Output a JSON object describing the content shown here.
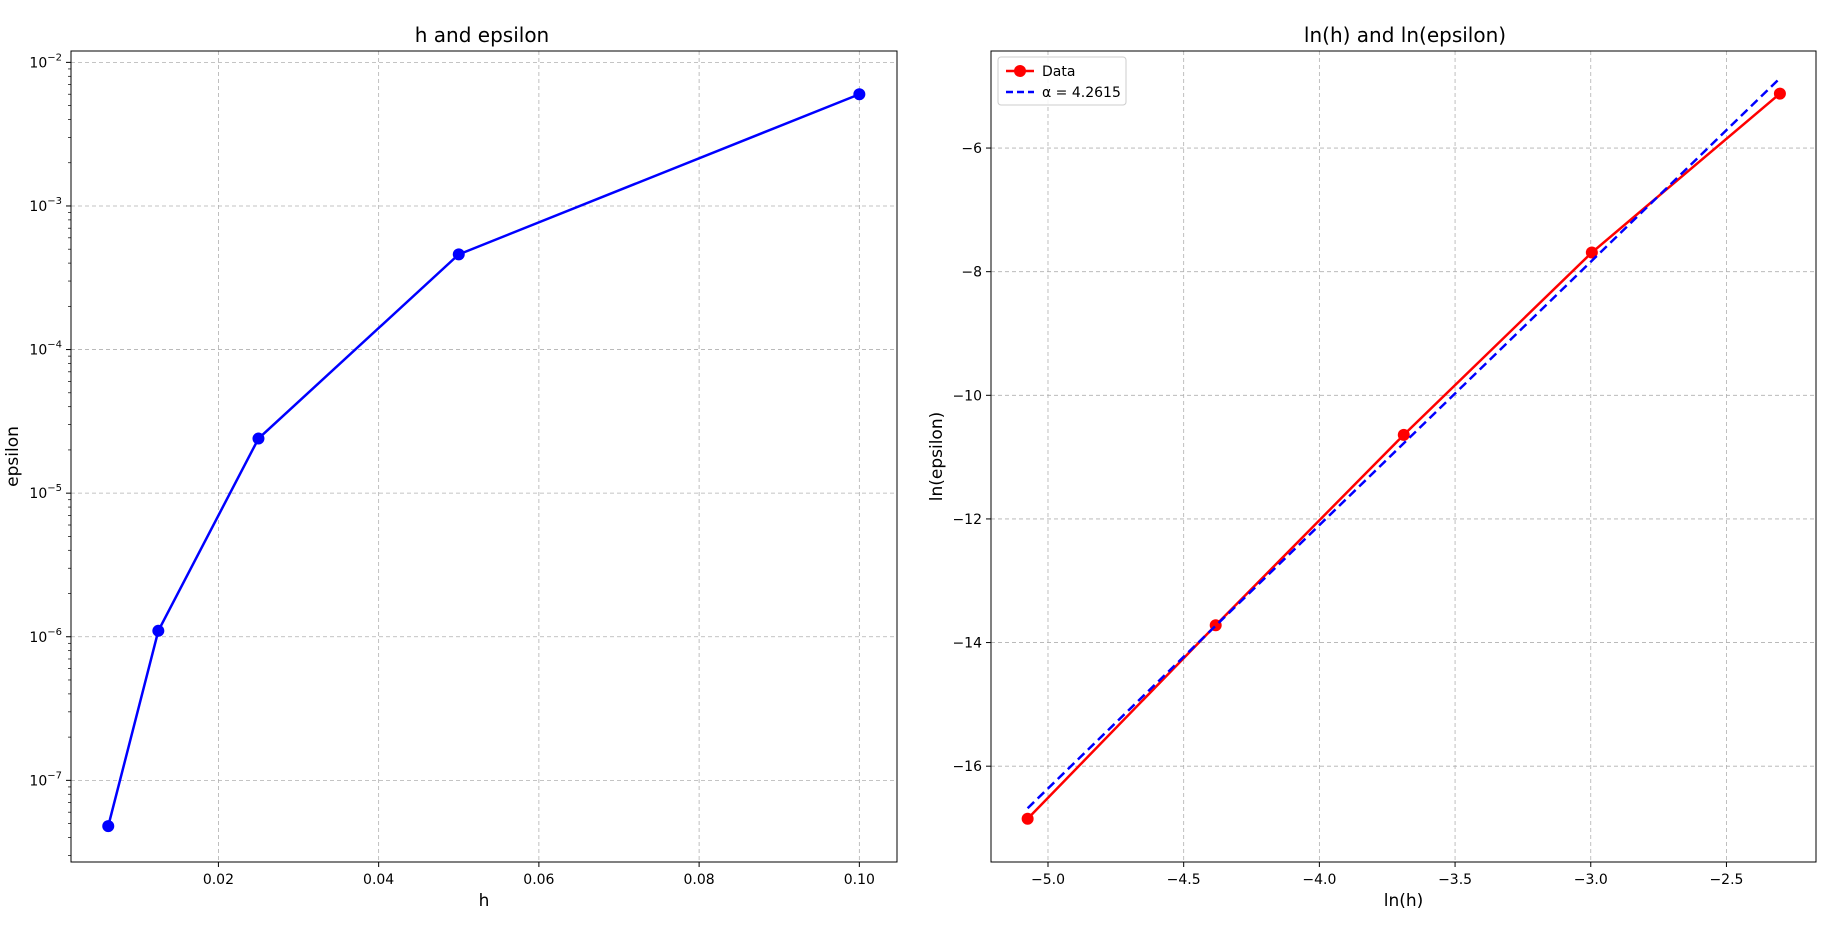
{
  "chart_data": [
    {
      "type": "line",
      "title": "h and epsilon",
      "xlabel": "h",
      "ylabel": "epsilon",
      "yscale": "log",
      "grid": true,
      "xlim": [
        0.0016,
        0.1047
      ],
      "ylim": [
        2.7e-08,
        0.012
      ],
      "x_ticks": [
        0.02,
        0.04,
        0.06,
        0.08,
        0.1
      ],
      "x_tick_labels": [
        "0.02",
        "0.04",
        "0.06",
        "0.08",
        "0.10"
      ],
      "y_ticks": [
        1e-07,
        1e-06,
        1e-05,
        0.0001,
        0.001,
        0.01
      ],
      "y_tick_labels": [
        {
          "base": "10",
          "exp": "−7"
        },
        {
          "base": "10",
          "exp": "−6"
        },
        {
          "base": "10",
          "exp": "−5"
        },
        {
          "base": "10",
          "exp": "−4"
        },
        {
          "base": "10",
          "exp": "−3"
        },
        {
          "base": "10",
          "exp": "−2"
        }
      ],
      "series": [
        {
          "color": "#0000ff",
          "marker": "circle",
          "x": [
            0.00625,
            0.0125,
            0.025,
            0.05,
            0.1
          ],
          "y": [
            4.8e-08,
            1.1e-06,
            2.4e-05,
            0.00046,
            0.006
          ]
        }
      ]
    },
    {
      "type": "line",
      "title": "ln(h) and ln(epsilon)",
      "xlabel": "ln(h)",
      "ylabel": "ln(epsilon)",
      "grid": true,
      "legend_position": "top-left",
      "xlim": [
        -5.21,
        -2.17
      ],
      "ylim": [
        -17.55,
        -4.43
      ],
      "x_ticks": [
        -5.0,
        -4.5,
        -4.0,
        -3.5,
        -3.0,
        -2.5
      ],
      "x_tick_labels": [
        "−5.0",
        "−4.5",
        "−4.0",
        "−3.5",
        "−3.0",
        "−2.5"
      ],
      "y_ticks": [
        -16,
        -14,
        -12,
        -10,
        -8,
        -6
      ],
      "y_tick_labels": [
        "−16",
        "−14",
        "−12",
        "−10",
        "−8",
        "−6"
      ],
      "series": [
        {
          "name": "Data",
          "color": "#ff0000",
          "marker": "circle",
          "style": "solid",
          "x": [
            -5.075,
            -4.382,
            -3.689,
            -2.996,
            -2.303
          ],
          "y": [
            -16.85,
            -13.72,
            -10.64,
            -7.69,
            -5.12
          ]
        },
        {
          "name": "α = 4.2615",
          "color": "#0000ff",
          "style": "dashed",
          "x": [
            -5.075,
            -2.303
          ],
          "y": [
            -16.68,
            -4.87
          ]
        }
      ]
    }
  ]
}
